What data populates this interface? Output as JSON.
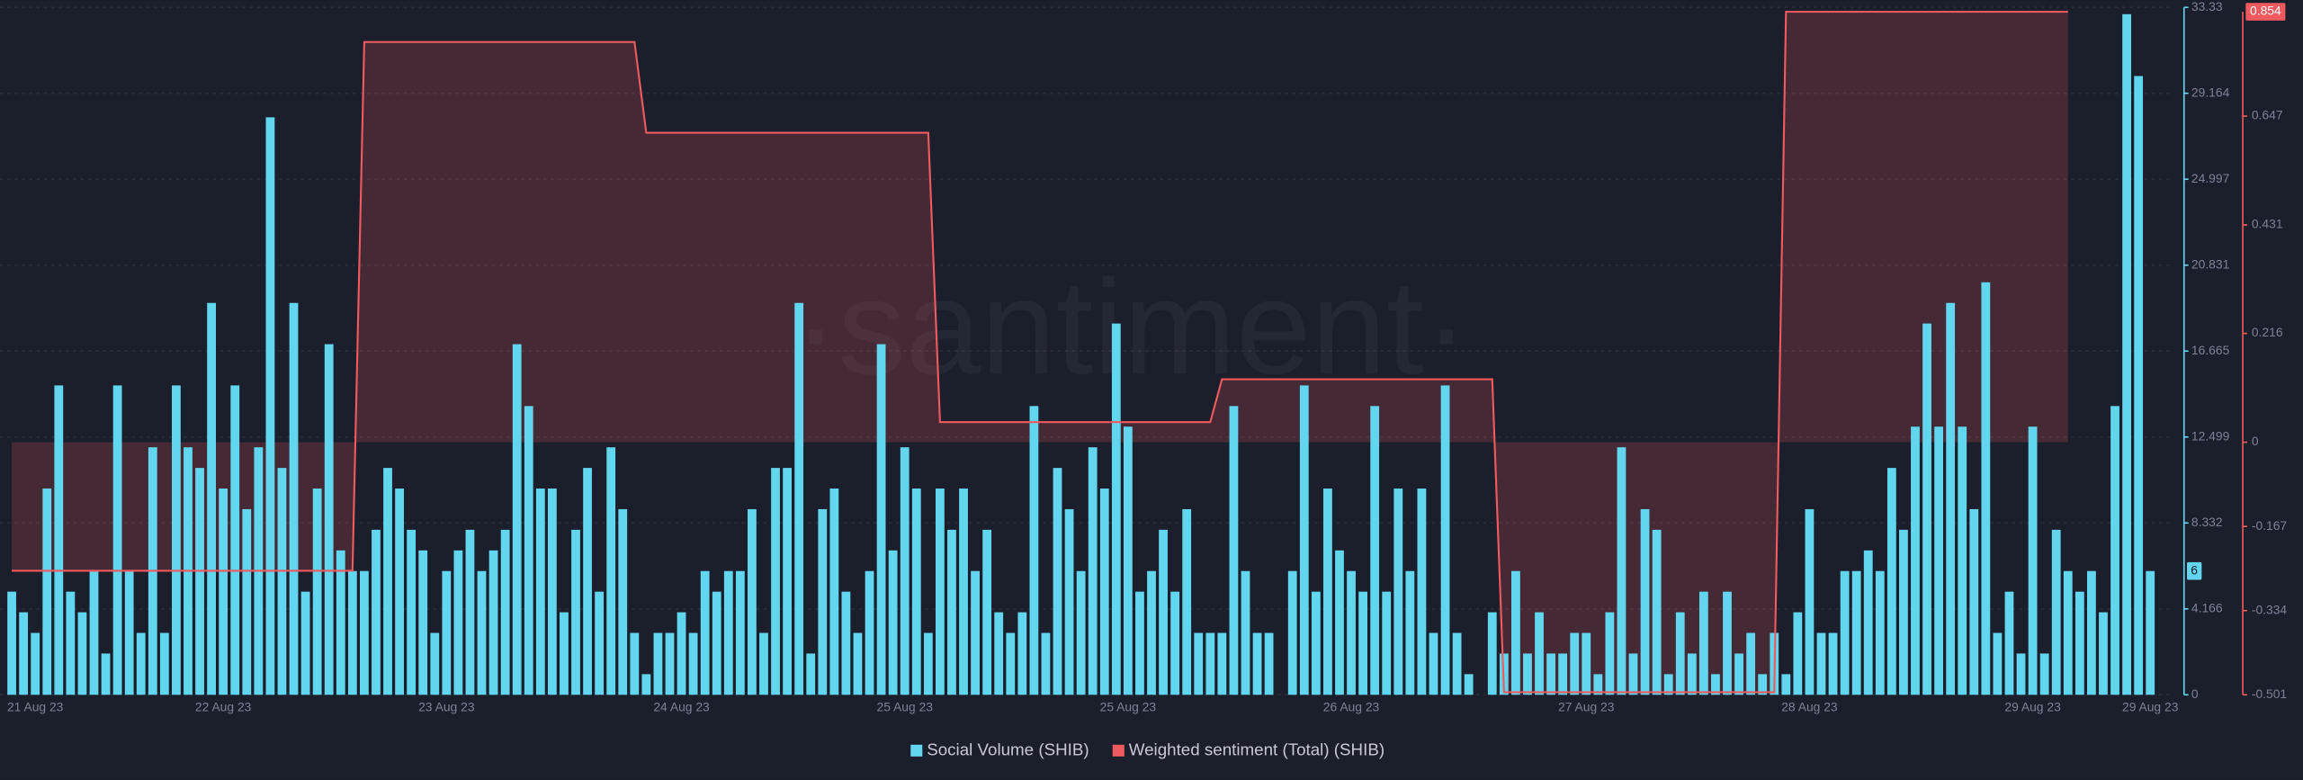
{
  "chart_data": {
    "type": "bar",
    "watermark": "·santiment·",
    "categories": [
      null,
      null,
      "21 Aug 23",
      null,
      null,
      null,
      null,
      null,
      null,
      null,
      null,
      null,
      null,
      null,
      null,
      null,
      null,
      null,
      "22 Aug 23",
      null,
      null,
      null,
      null,
      null,
      null,
      null,
      null,
      null,
      null,
      null,
      null,
      null,
      null,
      null,
      null,
      null,
      null,
      "23 Aug 23",
      null,
      null,
      null,
      null,
      null,
      null,
      null,
      null,
      null,
      null,
      null,
      null,
      null,
      null,
      null,
      null,
      null,
      null,
      null,
      "24 Aug 23",
      null,
      null,
      null,
      null,
      null,
      null,
      null,
      null,
      null,
      null,
      null,
      null,
      null,
      null,
      null,
      null,
      null,
      null,
      "25 Aug 23",
      null,
      null,
      null,
      null,
      null,
      null,
      null,
      null,
      null,
      null,
      null,
      null,
      null,
      null,
      null,
      null,
      null,
      null,
      "25 Aug 23",
      null,
      null,
      null,
      null,
      null,
      null,
      null,
      null,
      null,
      null,
      null,
      null,
      null,
      null,
      null,
      null,
      null,
      null,
      "26 Aug 23",
      null,
      null,
      null,
      null,
      null,
      null,
      null,
      null,
      null,
      null,
      null,
      null,
      null,
      null,
      null,
      null,
      null,
      null,
      null,
      "27 Aug 23",
      null,
      null,
      null,
      null,
      null,
      null,
      null,
      null,
      null,
      null,
      null,
      null,
      null,
      null,
      null,
      null,
      null,
      null,
      "28 Aug 23",
      null,
      null,
      null,
      null,
      null,
      null,
      null,
      null,
      null,
      null,
      null,
      null,
      null,
      null,
      null,
      null,
      null,
      null,
      "29 Aug 23",
      null,
      null,
      null,
      null,
      null,
      null,
      null,
      null,
      null,
      "29 Aug 23"
    ],
    "series": [
      {
        "name": "Social Volume (SHIB)",
        "type": "bar",
        "color": "#62d6ee",
        "values": [
          5,
          4,
          3,
          10,
          15,
          5,
          4,
          6,
          2,
          15,
          6,
          3,
          12,
          3,
          15,
          12,
          11,
          19,
          10,
          15,
          9,
          12,
          28,
          11,
          19,
          5,
          10,
          17,
          7,
          6,
          6,
          8,
          11,
          10,
          8,
          7,
          3,
          6,
          7,
          8,
          6,
          7,
          8,
          17,
          14,
          10,
          10,
          4,
          8,
          11,
          5,
          12,
          9,
          3,
          1,
          3,
          3,
          4,
          3,
          6,
          5,
          6,
          6,
          9,
          3,
          11,
          11,
          19,
          2,
          9,
          10,
          5,
          3,
          6,
          17,
          7,
          12,
          10,
          3,
          10,
          8,
          10,
          6,
          8,
          4,
          3,
          4,
          14,
          3,
          11,
          9,
          6,
          12,
          10,
          18,
          13,
          5,
          6,
          8,
          5,
          9,
          3,
          3,
          3,
          14,
          6,
          3,
          3,
          0,
          6,
          15,
          5,
          10,
          7,
          6,
          5,
          14,
          5,
          10,
          6,
          10,
          3,
          15,
          3,
          1,
          0,
          4,
          2,
          6,
          2,
          4,
          2,
          2,
          3,
          3,
          1,
          4,
          12,
          2,
          9,
          8,
          1,
          4,
          2,
          5,
          1,
          5,
          2,
          3,
          1,
          3,
          1,
          4,
          9,
          3,
          3,
          6,
          6,
          7,
          6,
          11,
          8,
          13,
          18,
          13,
          19,
          13,
          9,
          20,
          3,
          5,
          2,
          13,
          2,
          8,
          6,
          5,
          6,
          4,
          14,
          33,
          30,
          6
        ]
      },
      {
        "name": "Weighted sentiment (Total) (SHIB)",
        "type": "line",
        "axis": "y2",
        "color": "#ef5a5e",
        "values": [
          -0.255,
          -0.255,
          -0.255,
          -0.255,
          -0.255,
          -0.255,
          -0.255,
          -0.255,
          -0.255,
          -0.255,
          -0.255,
          -0.255,
          -0.255,
          -0.255,
          -0.255,
          -0.255,
          -0.255,
          -0.255,
          -0.255,
          -0.255,
          -0.255,
          -0.255,
          -0.255,
          -0.255,
          -0.255,
          -0.255,
          -0.255,
          -0.255,
          -0.255,
          -0.255,
          0.794,
          0.794,
          0.794,
          0.794,
          0.794,
          0.794,
          0.794,
          0.794,
          0.794,
          0.794,
          0.794,
          0.794,
          0.794,
          0.794,
          0.794,
          0.794,
          0.794,
          0.794,
          0.794,
          0.794,
          0.794,
          0.794,
          0.794,
          0.794,
          0.614,
          0.614,
          0.614,
          0.614,
          0.614,
          0.614,
          0.614,
          0.614,
          0.614,
          0.614,
          0.614,
          0.614,
          0.614,
          0.614,
          0.614,
          0.614,
          0.614,
          0.614,
          0.614,
          0.614,
          0.614,
          0.614,
          0.614,
          0.614,
          0.614,
          0.04,
          0.04,
          0.04,
          0.04,
          0.04,
          0.04,
          0.04,
          0.04,
          0.04,
          0.04,
          0.04,
          0.04,
          0.04,
          0.04,
          0.04,
          0.04,
          0.04,
          0.04,
          0.04,
          0.04,
          0.04,
          0.04,
          0.04,
          0.04,
          0.125,
          0.125,
          0.125,
          0.125,
          0.125,
          0.125,
          0.125,
          0.125,
          0.125,
          0.125,
          0.125,
          0.125,
          0.125,
          0.125,
          0.125,
          0.125,
          0.125,
          0.125,
          0.125,
          0.125,
          0.125,
          0.125,
          0.125,
          0.125,
          -0.496,
          -0.496,
          -0.496,
          -0.496,
          -0.496,
          -0.496,
          -0.496,
          -0.496,
          -0.496,
          -0.496,
          -0.496,
          -0.496,
          -0.496,
          -0.496,
          -0.496,
          -0.496,
          -0.496,
          -0.496,
          -0.496,
          -0.496,
          -0.496,
          -0.496,
          -0.496,
          -0.496,
          0.854,
          0.854,
          0.854,
          0.854,
          0.854,
          0.854,
          0.854,
          0.854,
          0.854,
          0.854,
          0.854,
          0.854,
          0.854,
          0.854,
          0.854,
          0.854,
          0.854,
          0.854,
          0.854,
          0.854,
          0.854,
          0.854,
          0.854,
          0.854,
          0.854,
          null,
          null,
          null,
          null,
          null,
          null,
          null
        ]
      }
    ],
    "ylim": [
      0,
      33.33
    ],
    "yticks": [
      0,
      4.166,
      8.332,
      12.499,
      16.665,
      20.831,
      24.997,
      29.164,
      33.33
    ],
    "y2lim": [
      -0.501,
      0.854
    ],
    "y2ticks": [
      -0.501,
      -0.334,
      -0.167,
      0,
      0.216,
      0.431,
      0.647
    ],
    "grid": true,
    "legend": "bottom"
  }
}
